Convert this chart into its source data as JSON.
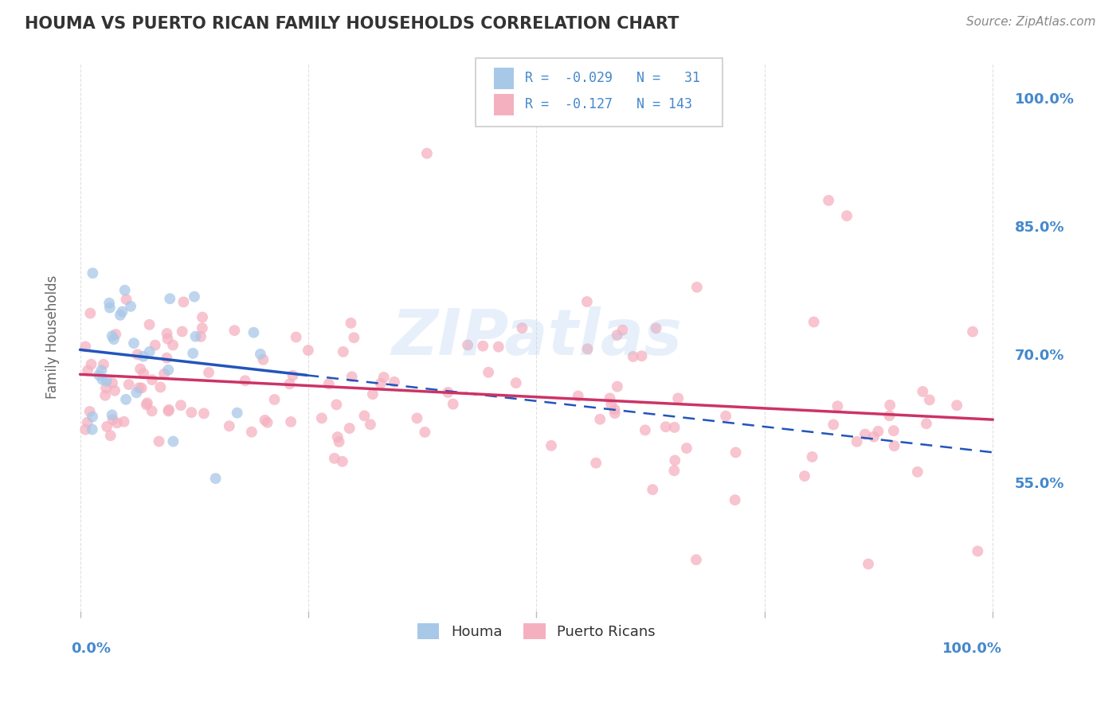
{
  "title": "HOUMA VS PUERTO RICAN FAMILY HOUSEHOLDS CORRELATION CHART",
  "source": "Source: ZipAtlas.com",
  "ylabel": "Family Households",
  "watermark": "ZIPatlas",
  "houma_color": "#a8c8e8",
  "puerto_rican_color": "#f5b0c0",
  "houma_line_color": "#2255bb",
  "puerto_rican_line_color": "#cc3366",
  "R_houma": -0.029,
  "N_houma": 31,
  "R_pr": -0.127,
  "N_pr": 143,
  "background_color": "#ffffff",
  "grid_color": "#dddddd",
  "title_color": "#333333",
  "axis_label_color": "#4488cc",
  "right_yticks": [
    0.55,
    0.7,
    0.85,
    1.0
  ],
  "right_yticklabels": [
    "55.0%",
    "70.0%",
    "85.0%",
    "100.0%"
  ],
  "ylim": [
    0.4,
    1.04
  ],
  "xlim": [
    -0.01,
    1.01
  ]
}
